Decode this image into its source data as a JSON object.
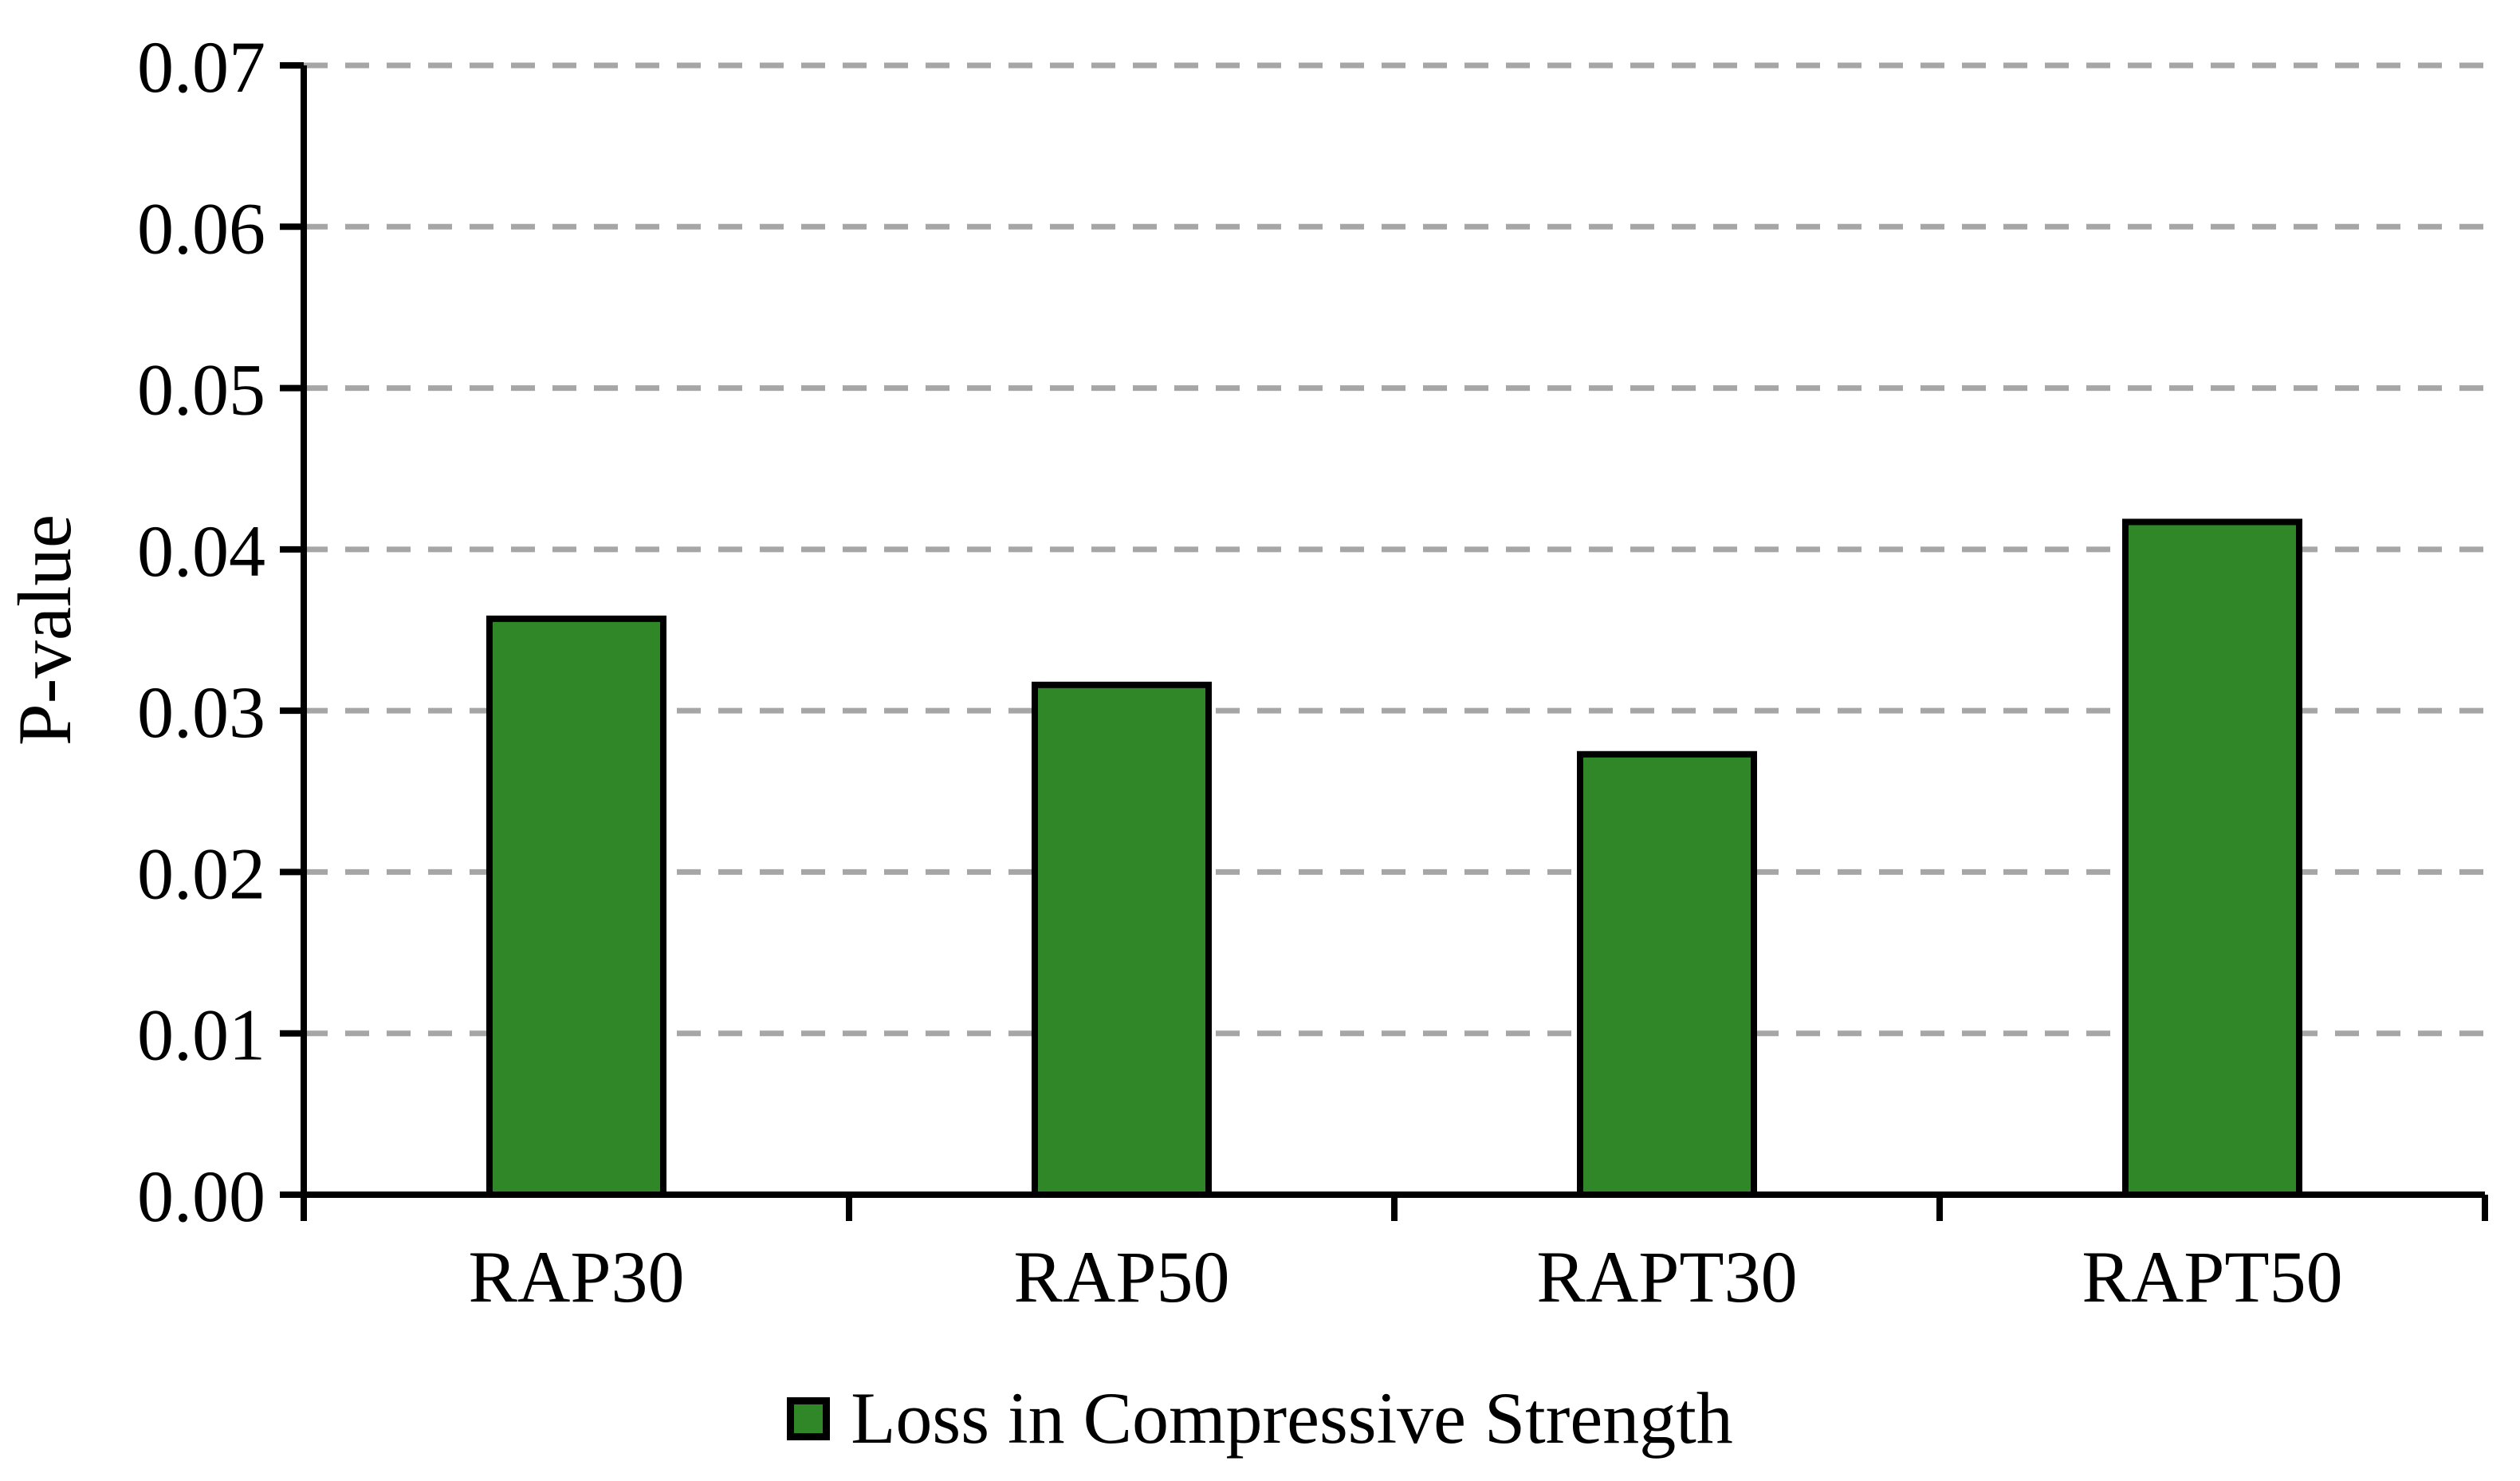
{
  "chart_data": {
    "type": "bar",
    "title": "",
    "categories": [
      "RAP30",
      "RAP50",
      "RAPT30",
      "RAPT50"
    ],
    "series": [
      {
        "name": "Loss in Compressive Strength",
        "values": [
          0.0357,
          0.0316,
          0.0273,
          0.0417
        ]
      }
    ],
    "xlabel": "",
    "ylabel": "P-value",
    "ylim": [
      0,
      0.07
    ],
    "ytick_step": 0.01,
    "ytick_labels": [
      "0.00",
      "0.01",
      "0.02",
      "0.03",
      "0.04",
      "0.05",
      "0.06",
      "0.07"
    ],
    "grid": "horizontal-dashed",
    "legend_position": "bottom-center"
  },
  "colors": {
    "background": "#FFFFFF",
    "bar_fill": "#2F8728",
    "bar_border": "#000000",
    "gridline": "#A6A6A6",
    "axis": "#000000",
    "text": "#000000"
  }
}
